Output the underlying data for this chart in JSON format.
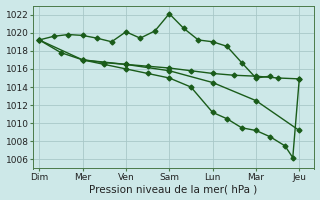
{
  "background_color": "#cde8e8",
  "grid_color": "#a8c8c8",
  "line_color": "#1a5c1a",
  "xlabel": "Pression niveau de la mer( hPa )",
  "ylim": [
    1005,
    1023
  ],
  "yticks": [
    1006,
    1008,
    1010,
    1012,
    1014,
    1016,
    1018,
    1020,
    1022
  ],
  "xtick_labels": [
    "Dim",
    "Mer",
    "Ven",
    "Sam",
    "Lun",
    "Mar",
    "Jeu"
  ],
  "xtick_positions": [
    0,
    1,
    2,
    3,
    4,
    5,
    6
  ],
  "series": [
    {
      "x": [
        0,
        0.33,
        0.67,
        1.0,
        1.33,
        1.67,
        2.0,
        2.33,
        2.67,
        3.0,
        3.33,
        3.67,
        4.0,
        4.33,
        4.67,
        5.0,
        5.33
      ],
      "y": [
        1019.2,
        1019.6,
        1019.8,
        1019.7,
        1019.4,
        1019.0,
        1020.1,
        1019.4,
        1020.2,
        1022.1,
        1020.5,
        1019.2,
        1019.0,
        1018.5,
        1016.7,
        1015.0,
        1015.2
      ],
      "style": "-",
      "marker": "D",
      "markersize": 2.5,
      "linewidth": 1.0
    },
    {
      "x": [
        0,
        0.5,
        1.0,
        1.5,
        2.0,
        2.5,
        3.0,
        3.5,
        4.0,
        4.5,
        5.0,
        5.5,
        6.0
      ],
      "y": [
        1019.2,
        1017.8,
        1017.0,
        1016.7,
        1016.5,
        1016.3,
        1016.1,
        1015.8,
        1015.5,
        1015.3,
        1015.2,
        1015.0,
        1014.9
      ],
      "style": "-",
      "marker": "D",
      "markersize": 2.5,
      "linewidth": 1.0
    },
    {
      "x": [
        0,
        1.0,
        2.0,
        3.0,
        4.0,
        5.0,
        6.0
      ],
      "y": [
        1019.2,
        1017.0,
        1016.5,
        1015.8,
        1014.5,
        1012.5,
        1009.2
      ],
      "style": "-",
      "marker": "D",
      "markersize": 2.5,
      "linewidth": 1.0
    },
    {
      "x": [
        1.0,
        1.5,
        2.0,
        2.5,
        3.0,
        3.5,
        4.0,
        4.33,
        4.67,
        5.0,
        5.33,
        5.67,
        5.85,
        6.0
      ],
      "y": [
        1017.0,
        1016.5,
        1016.0,
        1015.5,
        1015.0,
        1014.0,
        1011.2,
        1010.5,
        1009.5,
        1009.2,
        1008.5,
        1007.5,
        1006.2,
        1014.9
      ],
      "style": "-",
      "marker": "D",
      "markersize": 2.5,
      "linewidth": 1.0
    }
  ]
}
